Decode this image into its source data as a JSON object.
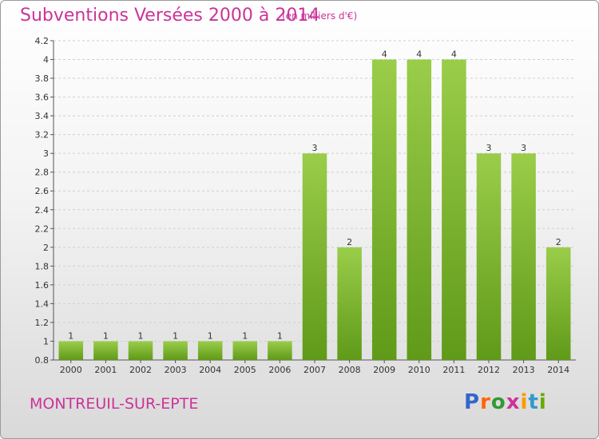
{
  "header": {
    "title": "Subventions Versées 2000 à 2014",
    "subtitle": "(en milliers d'€)"
  },
  "footer": {
    "city": "MONTREUIL-SUR-EPTE",
    "logo": "Proxiti"
  },
  "colors": {
    "title": "#cc3399",
    "bar_light": "#9acd4a",
    "bar_dark": "#5f9a18",
    "logo": [
      "#3366cc",
      "#ff6600",
      "#339933",
      "#cc3399",
      "#ff9900",
      "#3399cc",
      "#66aa00"
    ]
  },
  "chart_data": {
    "type": "bar",
    "title": "Subventions Versées 2000 à 2014",
    "subtitle": "(en milliers d'€)",
    "categories": [
      "2000",
      "2001",
      "2002",
      "2003",
      "2004",
      "2005",
      "2006",
      "2007",
      "2008",
      "2009",
      "2010",
      "2011",
      "2012",
      "2013",
      "2014"
    ],
    "values": [
      1,
      1,
      1,
      1,
      1,
      1,
      1,
      3,
      2,
      4,
      4,
      4,
      3,
      3,
      2
    ],
    "data_labels": [
      "1",
      "1",
      "1",
      "1",
      "1",
      "1",
      "1",
      "3",
      "2",
      "4",
      "4",
      "4",
      "3",
      "3",
      "2"
    ],
    "ylim": [
      0.8,
      4.2
    ],
    "yticks": [
      "0.8",
      "1",
      "1.2",
      "1.4",
      "1.6",
      "1.8",
      "2",
      "2.2",
      "2.4",
      "2.6",
      "2.8",
      "3",
      "3.2",
      "3.4",
      "3.6",
      "3.8",
      "4",
      "4.2"
    ],
    "grid": "horizontal dashed",
    "legend": "none"
  }
}
